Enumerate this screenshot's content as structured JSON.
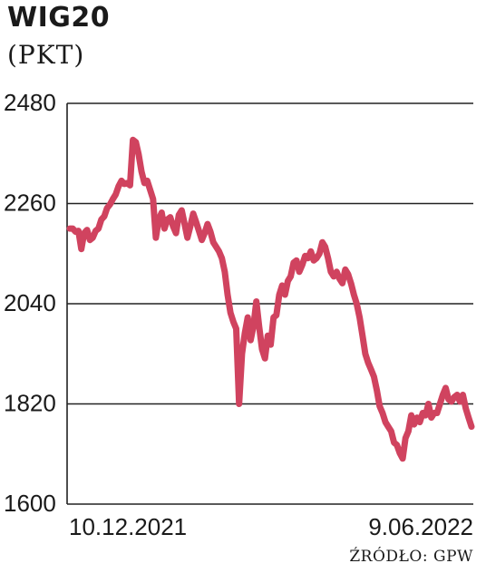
{
  "header": {
    "title": "WIG20",
    "unit": "(PKT)"
  },
  "footer": {
    "source": "ŹRÓDŁO: GPW"
  },
  "colors": {
    "line": "#d0435f",
    "grid": "#222222"
  },
  "chart_data": {
    "type": "line",
    "title": "WIG20",
    "ylabel": "(PKT)",
    "ylim": [
      1600,
      2480
    ],
    "yticks": [
      2480,
      2260,
      2040,
      1820,
      1600
    ],
    "xtick_labels": [
      "10.12.2021",
      "9.06.2022"
    ],
    "grid": true,
    "series": [
      {
        "values": [
          2205,
          2205,
          2198,
          2200,
          2160,
          2195,
          2202,
          2180,
          2185,
          2200,
          2205,
          2225,
          2232,
          2250,
          2258,
          2270,
          2280,
          2298,
          2310,
          2303,
          2305,
          2300,
          2400,
          2395,
          2368,
          2330,
          2305,
          2310,
          2290,
          2270,
          2185,
          2225,
          2240,
          2205,
          2225,
          2230,
          2210,
          2195,
          2235,
          2245,
          2215,
          2185,
          2210,
          2238,
          2220,
          2200,
          2180,
          2195,
          2215,
          2198,
          2175,
          2165,
          2155,
          2140,
          2110,
          2060,
          2020,
          2000,
          1985,
          1820,
          1930,
          1975,
          2010,
          1960,
          1990,
          2045,
          1990,
          1940,
          1920,
          1970,
          1950,
          2010,
          2015,
          2060,
          2080,
          2060,
          2090,
          2100,
          2130,
          2135,
          2110,
          2125,
          2145,
          2140,
          2155,
          2135,
          2140,
          2150,
          2175,
          2165,
          2140,
          2110,
          2100,
          2110,
          2095,
          2085,
          2115,
          2105,
          2085,
          2060,
          2040,
          2010,
          1970,
          1930,
          1910,
          1895,
          1880,
          1850,
          1815,
          1800,
          1780,
          1770,
          1760,
          1735,
          1730,
          1712,
          1700,
          1745,
          1760,
          1795,
          1775,
          1790,
          1780,
          1800,
          1795,
          1820,
          1790,
          1800,
          1800,
          1820,
          1840,
          1855,
          1830,
          1825,
          1835,
          1840,
          1825,
          1840,
          1810,
          1790,
          1770
        ]
      }
    ]
  }
}
